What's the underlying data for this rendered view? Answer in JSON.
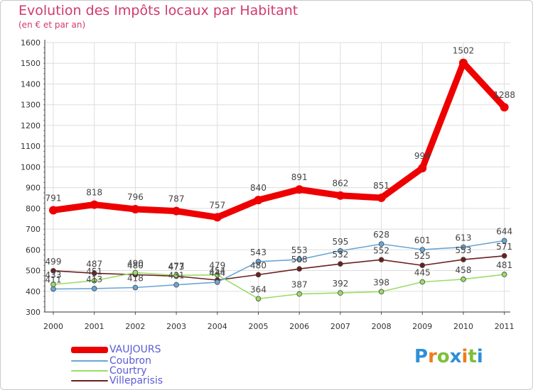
{
  "header": {
    "title": "Evolution des Impôts locaux par Habitant",
    "subtitle": "(en € et par an)"
  },
  "colors": {
    "title": "#d23a6a",
    "axis": "#333333",
    "grid": "#dddddd",
    "legend_text": "#5b5bd6"
  },
  "chart_data": {
    "type": "line",
    "title": "Evolution des Impôts locaux par Habitant",
    "subtitle": "(en € et par an)",
    "xlabel": "",
    "ylabel": "",
    "ylim": [
      300,
      1600
    ],
    "y_ticks": [
      "300",
      "400",
      "500",
      "600",
      "700",
      "800",
      "900",
      "1000",
      "1100",
      "1200",
      "1300",
      "1400",
      "1500",
      "1600"
    ],
    "categories": [
      "2000",
      "2001",
      "2002",
      "2003",
      "2004",
      "2005",
      "2006",
      "2007",
      "2008",
      "2009",
      "2010",
      "2011"
    ],
    "grid": true,
    "legend_position": "bottom-left",
    "series": [
      {
        "name": "VAUJOURS",
        "color": "#ee0000",
        "values": [
          791,
          818,
          796,
          787,
          757,
          840,
          891,
          862,
          851,
          994,
          1502,
          1288
        ],
        "labels": [
          "791",
          "818",
          "796",
          "787",
          "757",
          "840",
          "891",
          "862",
          "851",
          "994",
          "1502",
          "1288"
        ]
      },
      {
        "name": "Coubron",
        "color": "#6aa6d6",
        "values": [
          411,
          413,
          418,
          431,
          444,
          543,
          553,
          595,
          628,
          601,
          613,
          644
        ],
        "labels": [
          "411",
          "413",
          "418",
          "431",
          "444",
          "543",
          "553",
          "595",
          "628",
          "601",
          "613",
          "644"
        ]
      },
      {
        "name": "Courtry",
        "color": "#99dd66",
        "values": [
          433,
          451,
          490,
          477,
          479,
          364,
          387,
          392,
          398,
          445,
          458,
          481
        ],
        "labels": [
          "433",
          "451",
          "490",
          "477",
          "479",
          "364",
          "387",
          "392",
          "398",
          "445",
          "458",
          "481"
        ]
      },
      {
        "name": "Villeparisis",
        "color": "#6b1f1f",
        "values": [
          499,
          487,
          480,
          473,
          454,
          480,
          508,
          532,
          552,
          525,
          553,
          571
        ],
        "labels": [
          "499",
          "487",
          "480",
          "473",
          "454",
          "480",
          "508",
          "532",
          "552",
          "525",
          "553",
          "571"
        ]
      }
    ]
  },
  "logo": {
    "letters": [
      "P",
      "r",
      "o",
      "x",
      "i",
      "t",
      "i"
    ],
    "colors": [
      "#2f8fd8",
      "#ee7d1a",
      "#7dbf3a",
      "#2f8fd8",
      "#ee7d1a",
      "#7dbf3a",
      "#2f8fd8"
    ]
  }
}
